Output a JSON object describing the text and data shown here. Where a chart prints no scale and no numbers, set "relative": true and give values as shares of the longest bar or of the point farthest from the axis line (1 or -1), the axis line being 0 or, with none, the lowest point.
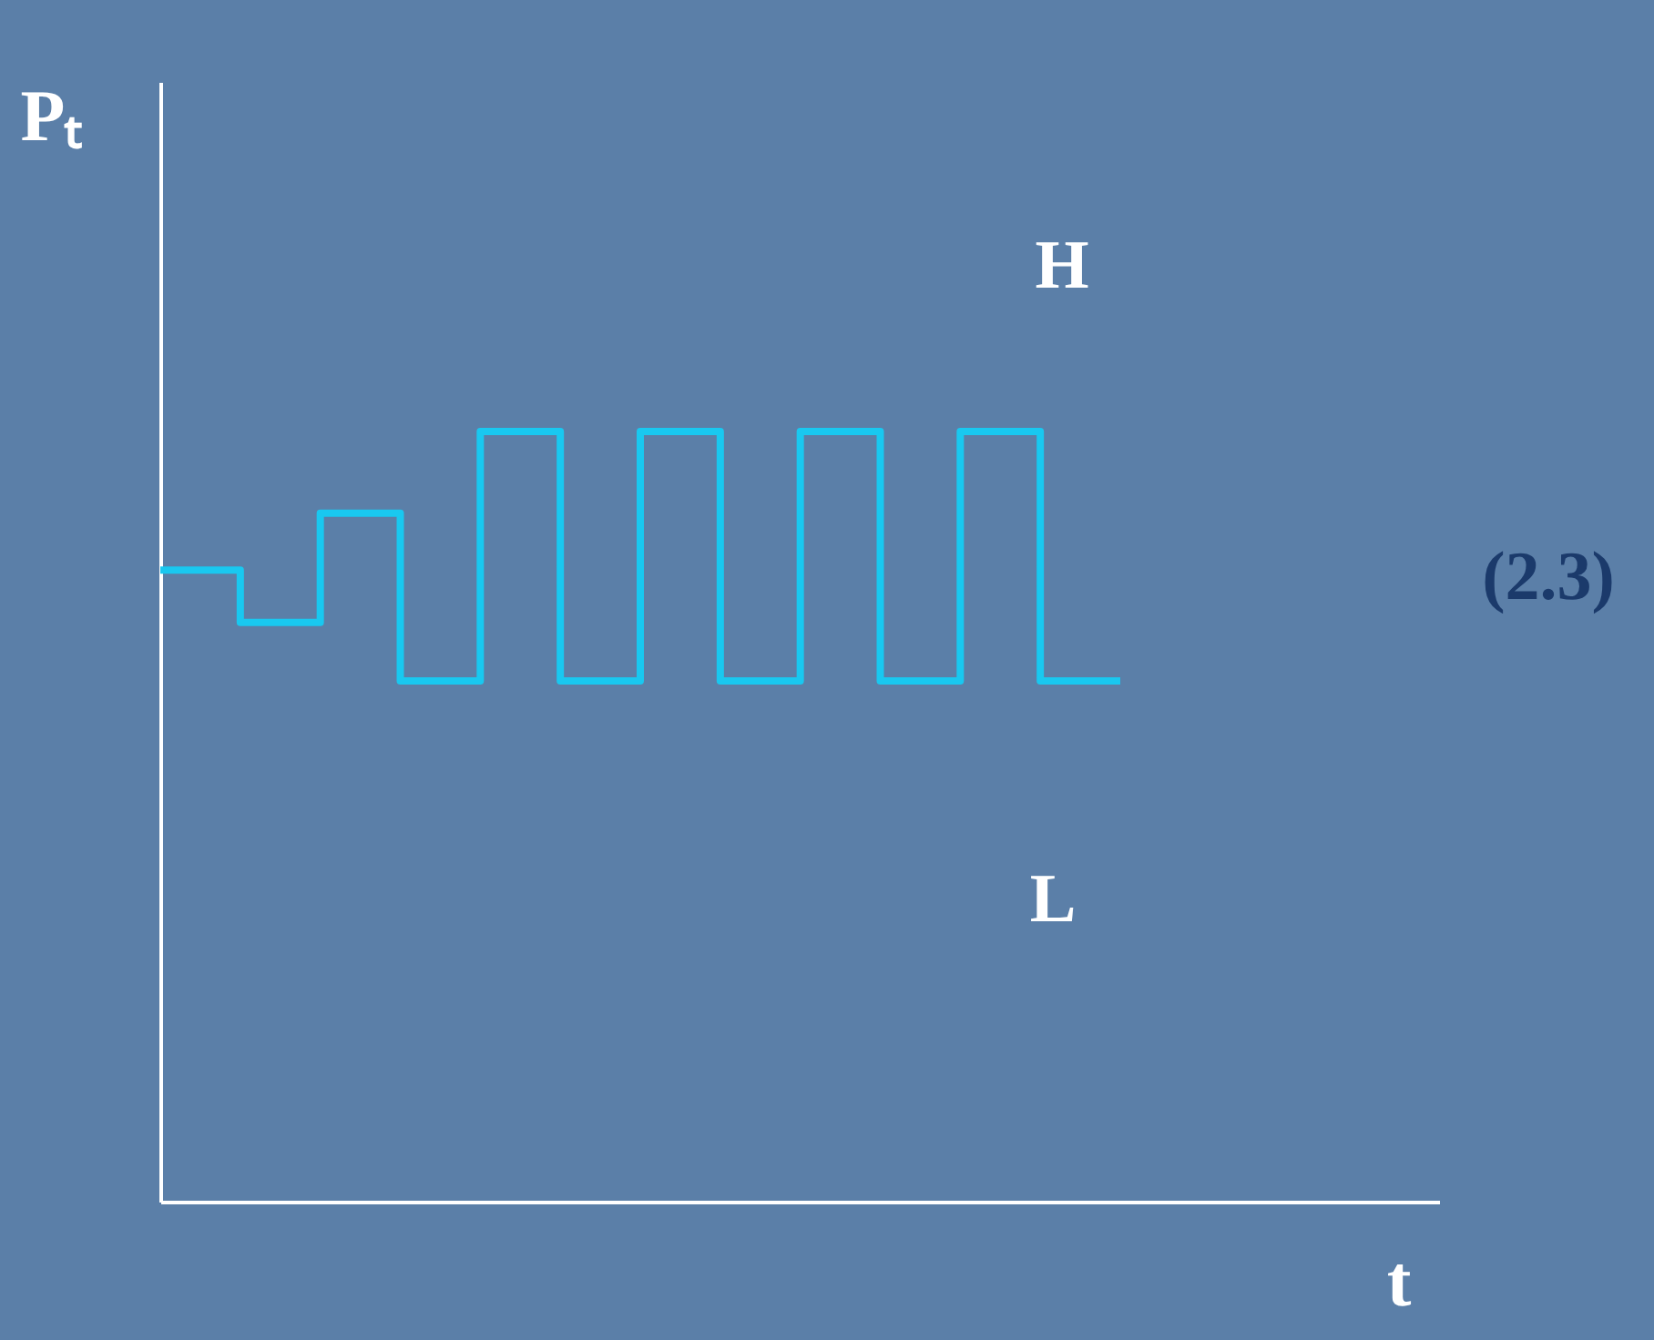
{
  "chart_data": {
    "type": "step",
    "relative": true,
    "xlabel": "t",
    "ylabel": "Pₜ",
    "tick_labels": false,
    "categories": [
      null,
      null,
      null,
      null,
      null,
      null,
      null,
      null,
      null,
      null,
      null,
      null,
      null
    ],
    "series": [
      {
        "color": "#19c8f0",
        "values": [
          0.82,
          0.752,
          0.894,
          0.676,
          1,
          0.676,
          1,
          0.676,
          1,
          0.676,
          1,
          0.676,
          0.676
        ]
      }
    ],
    "annotations": [
      "H",
      "L",
      "(2.3)"
    ]
  }
}
